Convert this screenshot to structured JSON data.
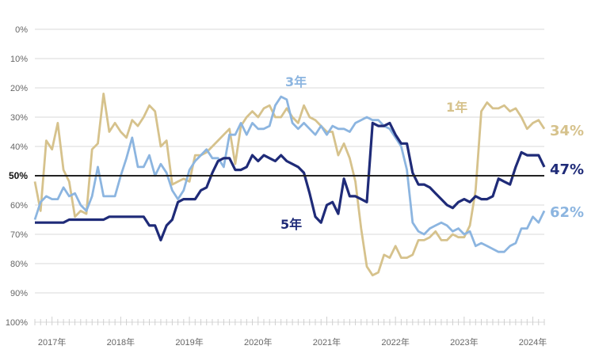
{
  "chart_data": {
    "type": "line",
    "title": "",
    "xlabel": "",
    "ylabel": "",
    "y_inverted": true,
    "ylim": [
      0,
      100
    ],
    "y_ticks": [
      "0%",
      "10%",
      "20%",
      "30%",
      "40%",
      "50%",
      "60%",
      "70%",
      "80%",
      "90%",
      "100%"
    ],
    "x_start": "2016-10",
    "x_frequency": "monthly",
    "x_tick_labels": [
      "2017年",
      "2018年",
      "2019年",
      "2020年",
      "2021年",
      "2022年",
      "2023年",
      "2024年"
    ],
    "reference_line": 50,
    "series": [
      {
        "name": "1年",
        "color": "#d6c28c",
        "end_label": "34%",
        "values": [
          52,
          62,
          38,
          41,
          32,
          48,
          52,
          64,
          62,
          63,
          41,
          39,
          22,
          35,
          32,
          35,
          37,
          31,
          33,
          30,
          26,
          28,
          40,
          38,
          53,
          52,
          51,
          52,
          43,
          43,
          42,
          40,
          38,
          36,
          34,
          46,
          33,
          30,
          28,
          30,
          27,
          26,
          30,
          30,
          27,
          30,
          32,
          26,
          30,
          31,
          33,
          35,
          35,
          43,
          39,
          44,
          52,
          68,
          81,
          84,
          83,
          77,
          78,
          74,
          78,
          78,
          77,
          72,
          72,
          71,
          69,
          72,
          72,
          70,
          71,
          71,
          67,
          55,
          28,
          25,
          27,
          27,
          26,
          28,
          27,
          30,
          34,
          32,
          31,
          34
        ]
      },
      {
        "name": "3年",
        "color": "#8cb5e0",
        "end_label": "62%",
        "values": [
          65,
          59,
          57,
          58,
          58,
          54,
          57,
          56,
          60,
          62,
          57,
          47,
          57,
          57,
          57,
          50,
          44,
          37,
          47,
          47,
          43,
          50,
          46,
          49,
          55,
          58,
          55,
          48,
          45,
          43,
          41,
          44,
          44,
          47,
          36,
          36,
          32,
          36,
          32,
          34,
          34,
          33,
          26,
          23,
          24,
          32,
          34,
          32,
          34,
          36,
          33,
          36,
          33,
          34,
          34,
          35,
          32,
          31,
          30,
          31,
          31,
          33,
          34,
          37,
          40,
          48,
          66,
          69,
          70,
          68,
          67,
          66,
          67,
          69,
          68,
          70,
          69,
          74,
          73,
          74,
          75,
          76,
          76,
          74,
          73,
          68,
          68,
          64,
          66,
          62
        ]
      },
      {
        "name": "5年",
        "color": "#1f2b78",
        "end_label": "47%",
        "values": [
          66,
          66,
          66,
          66,
          66,
          66,
          65,
          65,
          65,
          65,
          65,
          65,
          65,
          64,
          64,
          64,
          64,
          64,
          64,
          64,
          67,
          67,
          72,
          67,
          65,
          59,
          58,
          58,
          58,
          55,
          54,
          49,
          45,
          44,
          44,
          48,
          48,
          47,
          43,
          45,
          43,
          44,
          45,
          43,
          45,
          46,
          47,
          49,
          56,
          64,
          66,
          60,
          59,
          63,
          51,
          57,
          57,
          58,
          59,
          32,
          33,
          33,
          32,
          36,
          39,
          39,
          49,
          53,
          53,
          54,
          56,
          58,
          60,
          61,
          59,
          58,
          59,
          57,
          58,
          58,
          57,
          51,
          52,
          53,
          47,
          42,
          43,
          43,
          43,
          47
        ]
      }
    ]
  }
}
